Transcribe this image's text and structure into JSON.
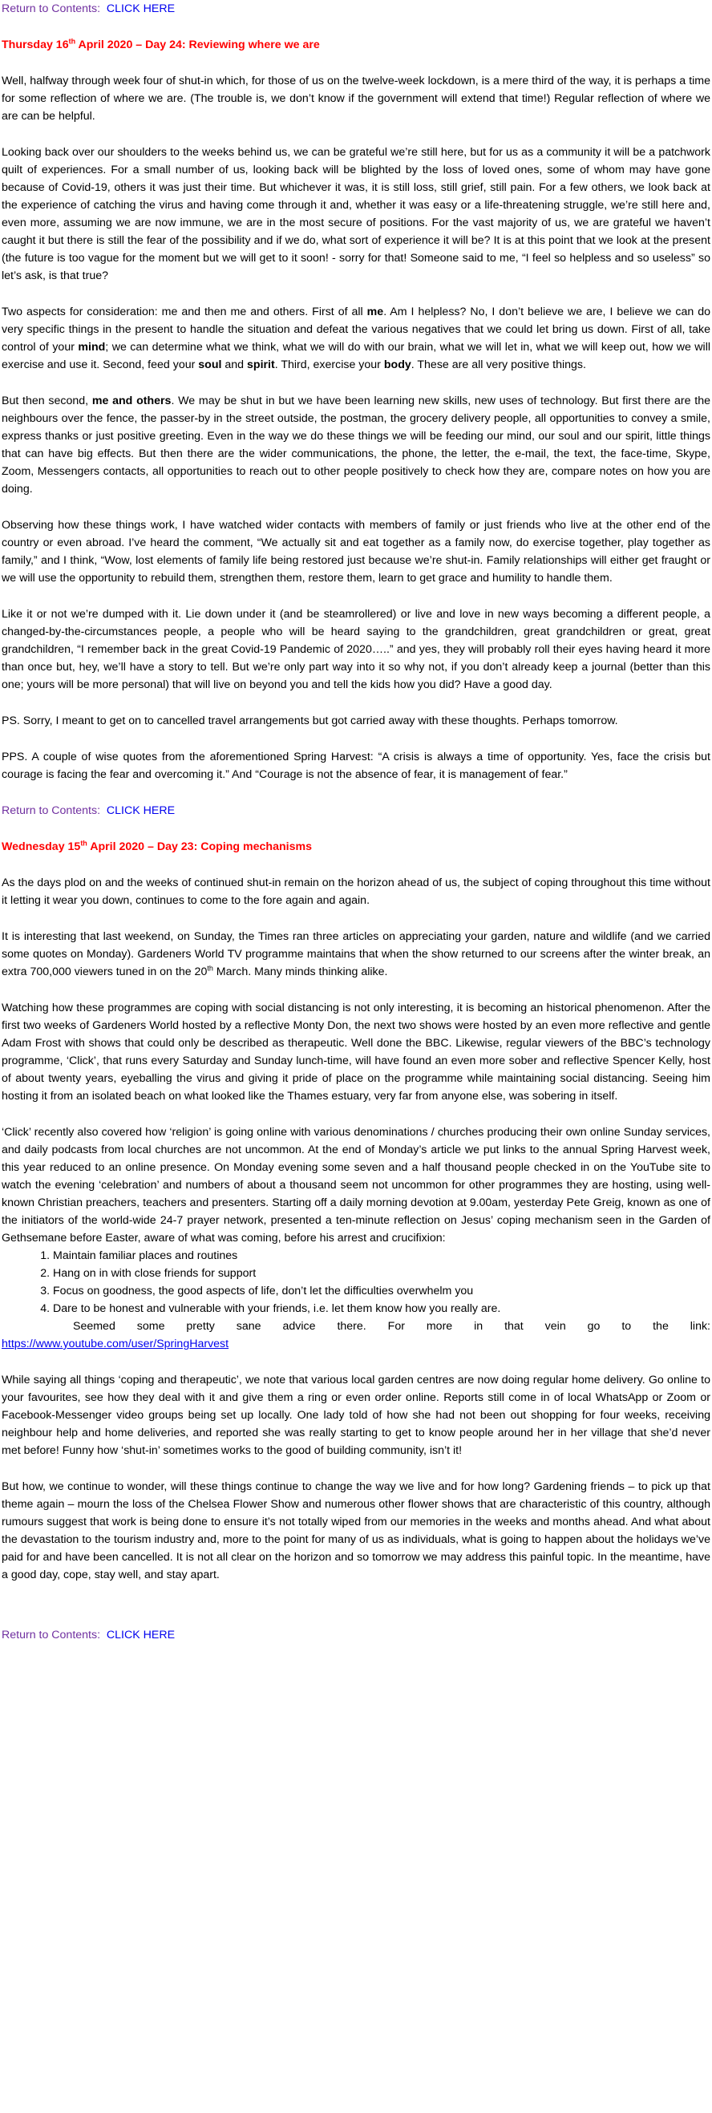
{
  "return_link": {
    "prefix": "Return to Contents:",
    "link": "CLICK HERE"
  },
  "day24": {
    "heading_a": "Thursday 16",
    "heading_sup": "th",
    "heading_b": " April 2020 – Day 24:  Reviewing where we are",
    "p1": "Well, halfway through week four of shut-in which, for those of us on the twelve-week lockdown, is a mere third of the way, it is perhaps a time for some reflection of where we are. (The trouble is, we don’t know if the government will extend that time!) Regular reflection of where we are can be helpful.",
    "p2": "Looking back over our shoulders to the weeks behind us, we can be grateful we’re still here, but for us as a community it will be a patchwork quilt of experiences.  For a small number of us, looking back will be blighted by the loss of loved ones, some of whom may have gone because of Covid-19, others it was just their time. But whichever it was, it is still loss, still grief, still pain. For a few others, we look back at the experience of catching the virus and having come through it and, whether it was easy or a life-threatening struggle, we’re still here and, even more, assuming we are now immune, we are in the most secure of positions. For the vast majority of us, we are grateful we haven’t caught it but there is still the fear of the possibility and if we do, what sort of experience it will be? It is at this point that we look at the present (the future is too vague for the moment but we will get to it soon! - sorry for that! Someone said to me, “I feel so helpless and so useless” so let’s ask, is that true?",
    "p3_a": "Two aspects for consideration: me and then me and others. First of all ",
    "p3_b1": "me",
    "p3_c": ". Am I helpless? No, I don’t believe we are, I believe we can do very specific things in the present to handle the situation and defeat the various negatives that we could let bring us down. First of all, take control of your ",
    "p3_b2": "mind",
    "p3_d": "; we can determine what we think, what we will do with our brain, what we will let in, what we will keep out, how we will exercise and use it. Second, feed your ",
    "p3_b3": "soul",
    "p3_e": " and ",
    "p3_b4": "spirit",
    "p3_f": ". Third, exercise your ",
    "p3_b5": "body",
    "p3_g": ". These are all very positive things.",
    "p4_a": "But then second, ",
    "p4_b": "me and others",
    "p4_c": ". We may be shut in but we have been learning new skills, new uses of technology. But first there are the neighbours over the fence, the passer-by in the street outside, the postman, the grocery delivery people, all opportunities to convey a smile, express thanks or just positive greeting. Even in the way we do these things we will be feeding our mind, our soul and our spirit, little things that can have big effects.   But then there are the wider communications, the phone, the letter, the e-mail, the text, the face-time, Skype, Zoom, Messengers contacts, all opportunities to reach out to other people positively to check how they are, compare notes on how you are doing.",
    "p5": "Observing how these things work, I have watched wider contacts with members of family or just friends who live at the other end of the country or even abroad. I’ve heard the comment, “We actually sit and eat together as a family now, do exercise together, play together as family,” and I think, “Wow, lost elements of family life being restored just because we’re shut-in. Family relationships will either get fraught or we will use the opportunity to rebuild them, strengthen them, restore them, learn to get grace and humility to handle them.",
    "p6": "Like it or not we’re dumped with it. Lie down under it (and be steamrollered) or live and love in new ways becoming a different people, a changed-by-the-circumstances people, a people who will be heard saying to the grandchildren, great grandchildren or great, great grandchildren, “I remember back in the great Covid-19 Pandemic of 2020…..” and yes, they will probably roll their eyes having heard it more than once but, hey, we’ll have a story to tell. But we’re only part way into it so why not, if you don’t already keep a journal (better than this one; yours will be more personal) that will live on beyond you and tell the kids how you did?  Have a good day.",
    "p7": "PS. Sorry, I meant to get on to cancelled travel arrangements but got carried away with these thoughts. Perhaps tomorrow.",
    "p8": "PPS. A couple of wise quotes from the aforementioned Spring Harvest: “A crisis is always a time of opportunity. Yes, face the crisis but courage is facing the fear and overcoming it.” And “Courage is not the absence of fear, it is management of fear.”"
  },
  "day23": {
    "heading_a": "Wednesday 15",
    "heading_sup": "th",
    "heading_b": " April 2020 – Day 23: Coping mechanisms",
    "p1": "As the days plod on and the weeks of continued shut-in remain on the horizon ahead of us,  the subject of coping throughout this time without it letting it wear you down, continues to come to the fore again and again.",
    "p2_a": "It is interesting that last weekend, on Sunday, the Times ran three articles on appreciating your garden, nature and wildlife (and we carried some quotes on Monday). Gardeners World TV programme maintains that when the show returned to our screens after the winter break, an extra 700,000 viewers tuned in on the 20",
    "p2_sup": "th",
    "p2_b": " March.  Many minds thinking alike.",
    "p3": "Watching how these programmes are coping with social distancing is not only interesting, it is becoming an historical phenomenon. After the first two weeks of Gardeners World hosted by a reflective Monty Don, the next two shows were hosted by an even more reflective and gentle Adam Frost with shows that could only be described as therapeutic. Well done the BBC.  Likewise, regular viewers of the BBC’s technology programme, ‘Click’, that runs every Saturday and Sunday lunch-time, will have found an even more sober and reflective Spencer Kelly, host of about twenty years, eyeballing the virus and giving it pride of place on the programme while maintaining social distancing. Seeing him hosting it from an isolated beach on what looked like the Thames estuary, very far from anyone else, was sobering in itself.",
    "p4": "‘Click’ recently also covered how ‘religion’ is going online with various denominations / churches producing their own online Sunday services, and daily podcasts from local churches are not uncommon. At the end of Monday’s article we put links to the annual Spring Harvest week, this year reduced to an online presence. On Monday evening some seven and a half thousand people checked in on the YouTube site to watch the evening ‘celebration’ and numbers of about a thousand seem not uncommon for other programmes they are hosting, using well-known Christian preachers, teachers and presenters. Starting off a daily morning devotion at 9.00am, yesterday Pete Greig, known as one of the initiators of the world-wide 24-7 prayer network, presented a ten-minute reflection on Jesus’ coping mechanism seen in the Garden of Gethsemane before Easter, aware of what was coming, before his arrest and crucifixion:",
    "list": [
      "Maintain familiar places and routines",
      "Hang on in with close friends for support",
      "Focus on goodness, the good aspects of life, don’t let the difficulties overwhelm you",
      "Dare to be honest and vulnerable with your friends, i.e. let them know how you really are."
    ],
    "link_intro": "Seemed some pretty sane advice there. For more in that vein go to the link:",
    "link_url": "https://www.youtube.com/user/SpringHarvest",
    "p5": "While saying all things ‘coping and therapeutic’, we note that various local garden centres are now doing regular home delivery. Go online to your favourites, see how they deal with it and give them a ring or even order online. Reports still come in of local WhatsApp or Zoom or Facebook-Messenger video groups being set up locally. One lady told of how she had not been out shopping for four weeks, receiving neighbour help and home deliveries, and reported she was really starting to get to know people around her in her village that she’d never met before!  Funny how ‘shut-in’ sometimes works to the good of building community, isn’t it!",
    "p6": "But how, we continue to wonder, will these things continue to change the way we live and for how long? Gardening friends – to pick up that theme again – mourn the loss of the Chelsea Flower Show and numerous other flower shows that are characteristic of this country, although rumours suggest that work is being done to ensure it’s not totally wiped from our memories in the weeks and months ahead.  And what about the devastation to the tourism industry and, more to the point for many of us as individuals, what is going to happen about the holidays we’ve paid for and have been cancelled. It is not all clear on the horizon and so tomorrow we may address this painful topic. In the meantime, have a good day, cope, stay well, and stay apart."
  },
  "colors": {
    "heading": "#ff0000",
    "return_prefix": "#7030a0",
    "link": "#0000ee"
  }
}
